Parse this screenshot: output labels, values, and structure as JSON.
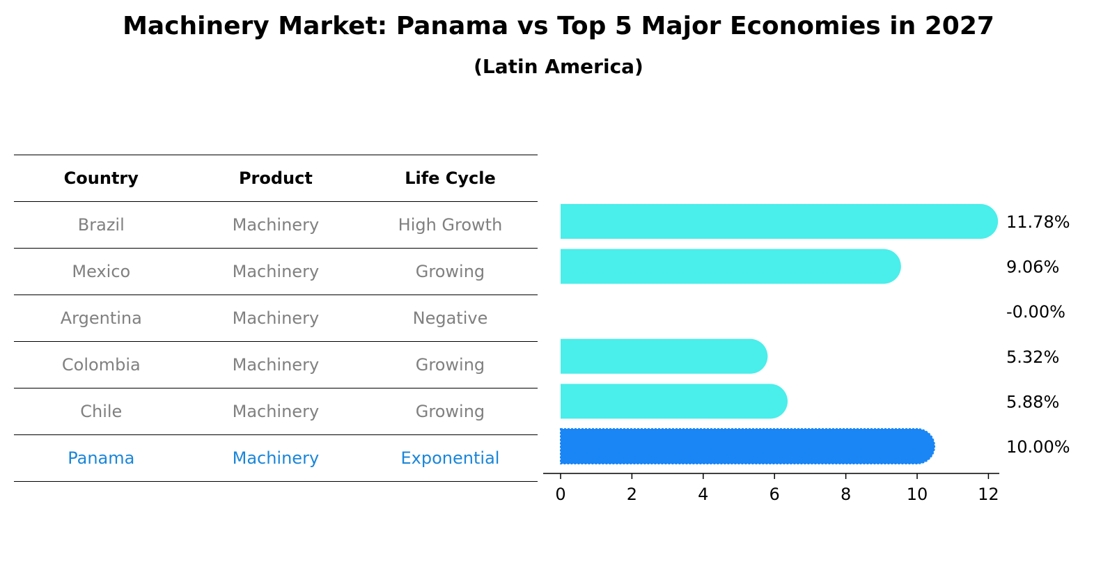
{
  "title": "Machinery Market: Panama vs Top 5 Major Economies in 2027",
  "subtitle": "(Latin America)",
  "table": {
    "headers": [
      "Country",
      "Product",
      "Life Cycle"
    ],
    "rows": [
      {
        "country": "Brazil",
        "product": "Machinery",
        "life_cycle": "High Growth"
      },
      {
        "country": "Mexico",
        "product": "Machinery",
        "life_cycle": "Growing"
      },
      {
        "country": "Argentina",
        "product": "Machinery",
        "life_cycle": "Negative"
      },
      {
        "country": "Colombia",
        "product": "Machinery",
        "life_cycle": "Growing"
      },
      {
        "country": "Chile",
        "product": "Machinery",
        "life_cycle": "Growing"
      },
      {
        "country": "Panama",
        "product": "Machinery",
        "life_cycle": "Exponential"
      }
    ],
    "highlight_color": "#1a86d9",
    "muted_color": "#808080"
  },
  "chart_data": {
    "type": "bar",
    "orientation": "horizontal",
    "categories": [
      "Brazil",
      "Mexico",
      "Argentina",
      "Colombia",
      "Chile",
      "Panama"
    ],
    "values": [
      11.78,
      9.06,
      -0.0,
      5.32,
      5.88,
      10.0
    ],
    "value_labels": [
      "11.78%",
      "9.06%",
      "-0.00%",
      "5.32%",
      "5.88%",
      "10.00%"
    ],
    "highlight": "Panama",
    "colors": {
      "default": "#4aeeea",
      "highlight": "#1a86f5"
    },
    "xlim": [
      -0.6,
      12.4
    ],
    "xticks": [
      0,
      2,
      4,
      6,
      8,
      10,
      12
    ],
    "xlabel": "",
    "ylabel": "",
    "grid": false
  }
}
